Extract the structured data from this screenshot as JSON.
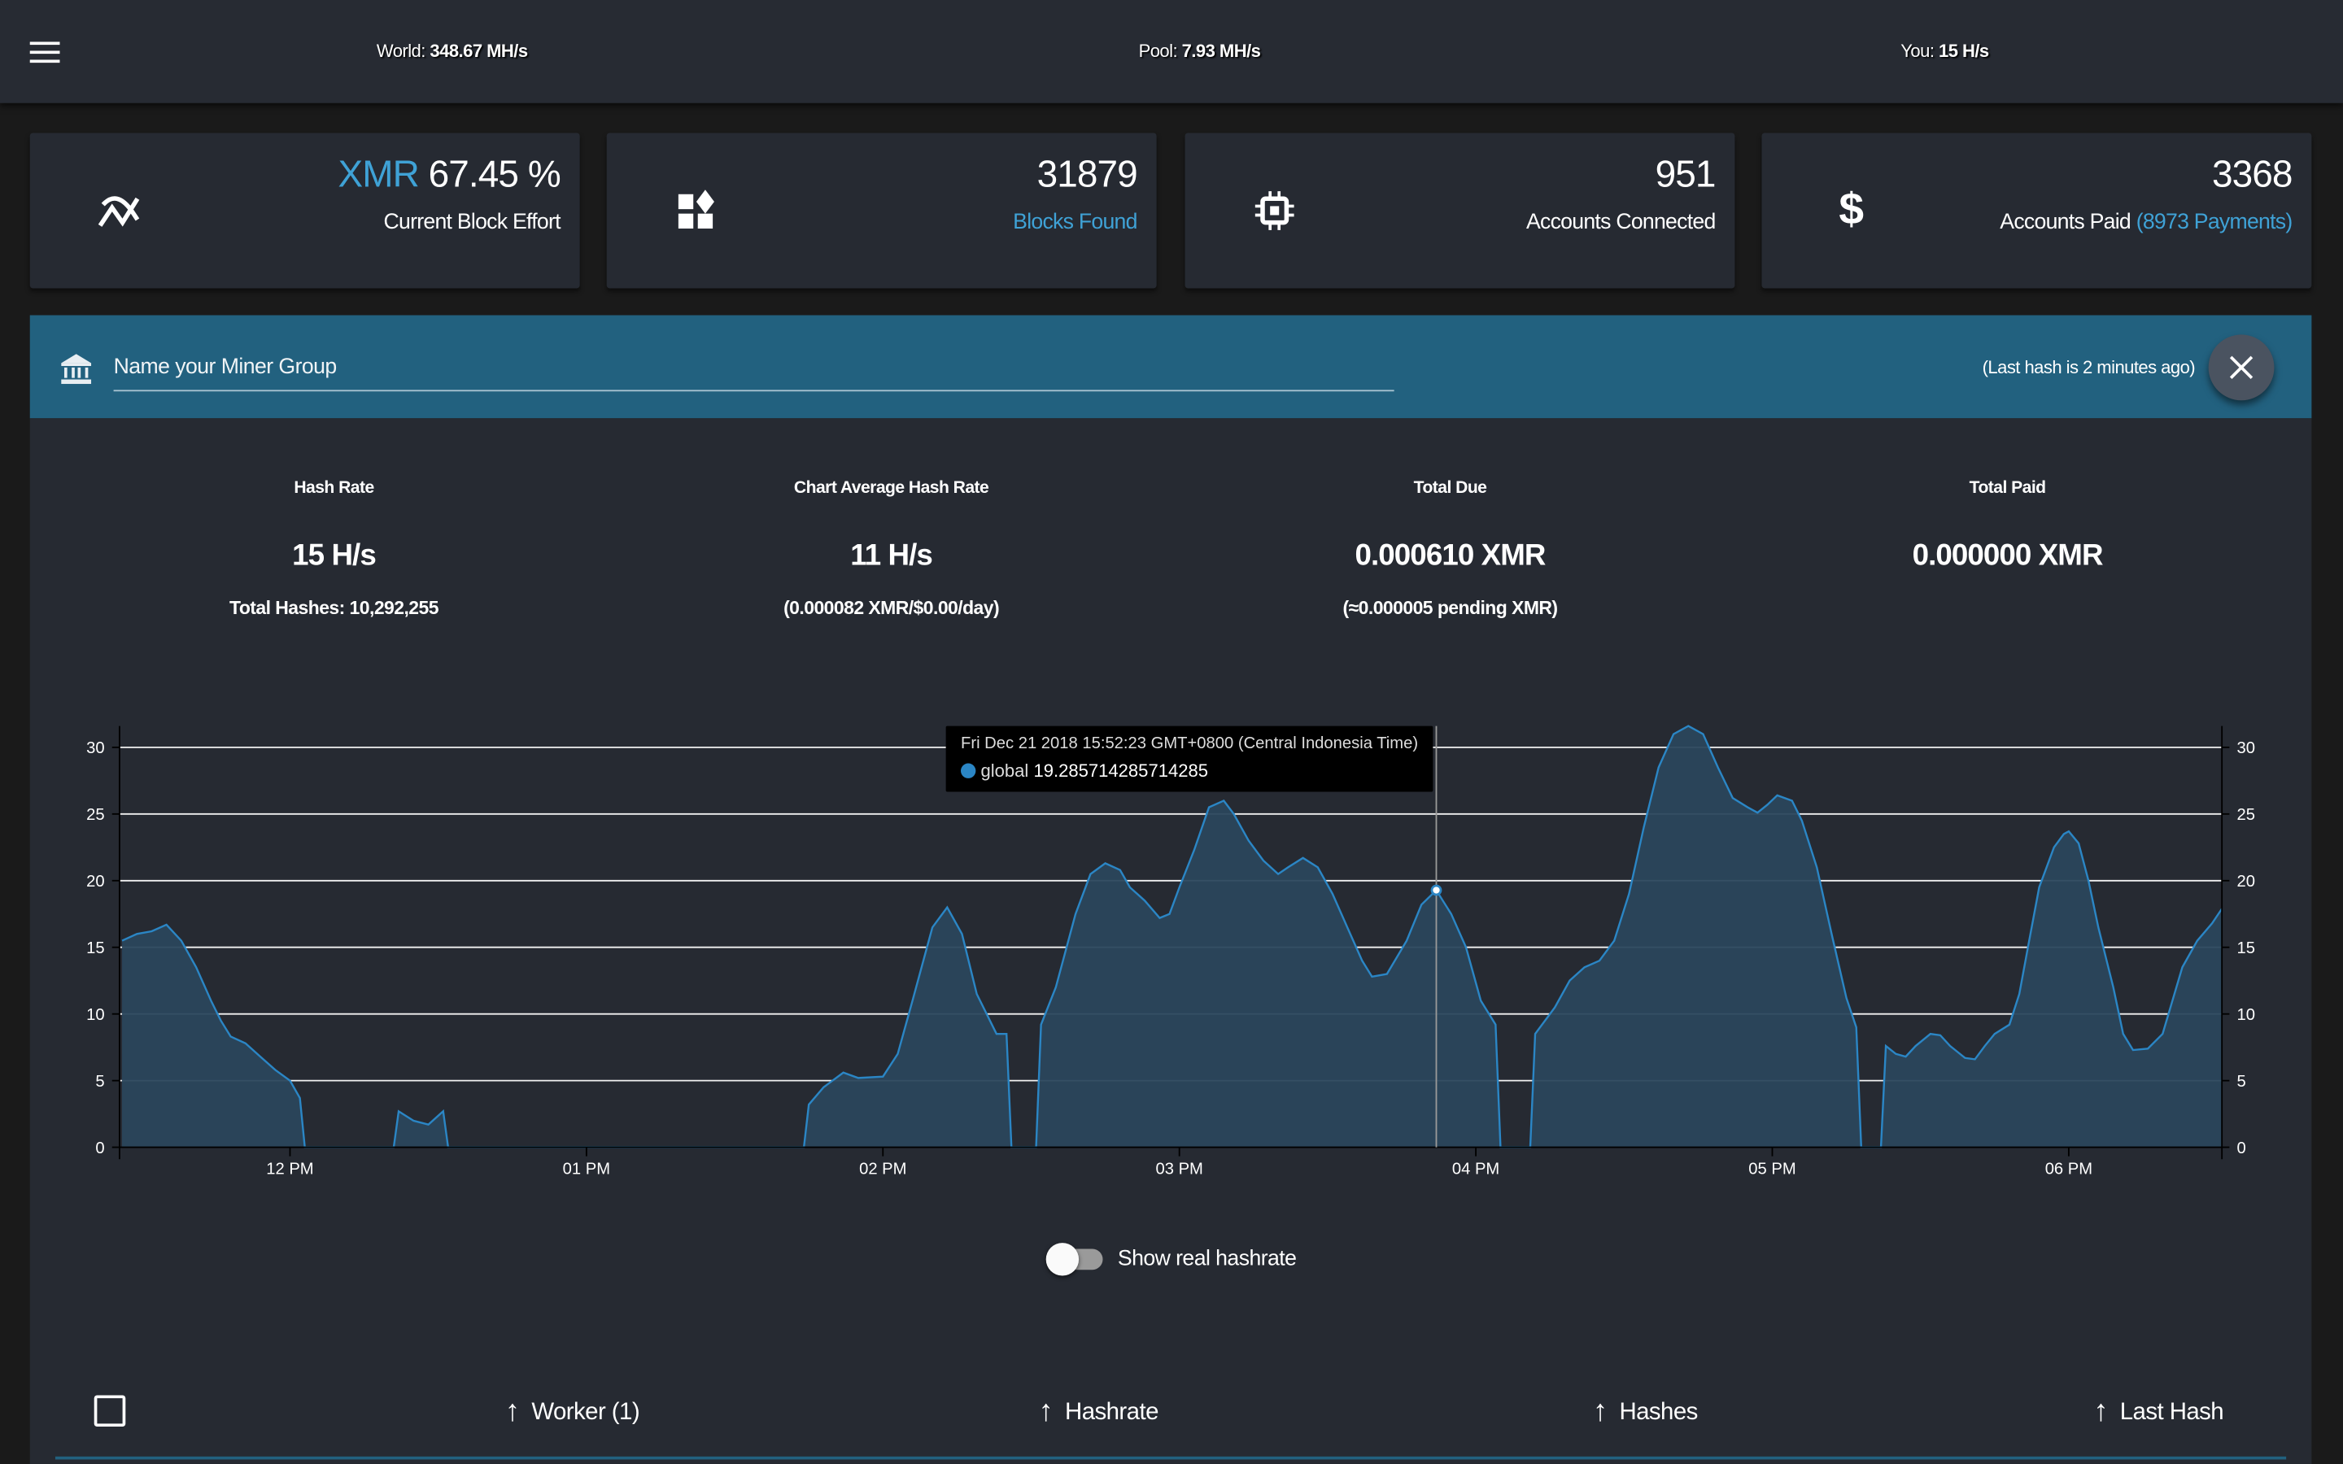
{
  "topbar": {
    "menu_icon": "hamburger-menu-icon",
    "world_label": "World:",
    "world_value": "348.67 MH/s",
    "pool_label": "Pool:",
    "pool_value": "7.93 MH/s",
    "you_label": "You:",
    "you_value": "15 H/s"
  },
  "cards": [
    {
      "icon": "effort-chart-icon",
      "prefix": "XMR",
      "value": "67.45 %",
      "label": "Current Block Effort"
    },
    {
      "icon": "widgets-icon",
      "value": "31879",
      "label": "Blocks Found"
    },
    {
      "icon": "cpu-chip-icon",
      "value": "951",
      "label": "Accounts Connected"
    },
    {
      "icon": "dollar-icon",
      "value": "3368",
      "label": "Accounts Paid",
      "extra": "(8973 Payments)"
    }
  ],
  "miner_group": {
    "icon": "bank-icon",
    "placeholder": "Name your Miner Group",
    "last_hash": "(Last hash is 2 minutes ago)",
    "close_icon": "close-icon"
  },
  "stats": [
    {
      "label": "Hash Rate",
      "value": "15 H/s",
      "sub": "Total Hashes: 10,292,255"
    },
    {
      "label": "Chart Average Hash Rate",
      "value": "11 H/s",
      "sub": "(0.000082 XMR/$0.00/day)"
    },
    {
      "label": "Total Due",
      "value": "0.000610 XMR",
      "sub": "(≈0.000005 pending XMR)"
    },
    {
      "label": "Total Paid",
      "value": "0.000000 XMR",
      "sub": ""
    }
  ],
  "chart_data": {
    "type": "area",
    "xlim": [
      "11:25",
      "18:31"
    ],
    "ylim": [
      0,
      31.6
    ],
    "grid": true,
    "y_ticks": [
      0,
      5,
      10,
      15,
      20,
      25,
      30
    ],
    "x_ticks": [
      {
        "time": "12:00",
        "label": "12 PM"
      },
      {
        "time": "13:00",
        "label": "01 PM"
      },
      {
        "time": "14:00",
        "label": "02 PM"
      },
      {
        "time": "15:00",
        "label": "03 PM"
      },
      {
        "time": "16:00",
        "label": "04 PM"
      },
      {
        "time": "17:00",
        "label": "05 PM"
      },
      {
        "time": "18:00",
        "label": "06 PM"
      }
    ],
    "colors": {
      "line": "#2b86c5",
      "fill": "#2a465c"
    },
    "series": [
      {
        "name": "global",
        "points": [
          [
            "11:26",
            15.5
          ],
          [
            "11:29",
            16
          ],
          [
            "11:32",
            16.2
          ],
          [
            "11:35",
            16.7
          ],
          [
            "11:38",
            15.5
          ],
          [
            "11:41",
            13.5
          ],
          [
            "11:44",
            11
          ],
          [
            "11:46",
            9.5
          ],
          [
            "11:48",
            8.3
          ],
          [
            "11:51",
            7.8
          ],
          [
            "11:54",
            6.8
          ],
          [
            "11:57",
            5.8
          ],
          [
            "12:00",
            5
          ],
          [
            "12:02",
            3.7
          ],
          [
            "12:03",
            0
          ],
          [
            "12:21",
            0
          ],
          [
            "12:22",
            2.7
          ],
          [
            "12:25",
            2.0
          ],
          [
            "12:28",
            1.7
          ],
          [
            "12:31",
            2.7
          ],
          [
            "12:32",
            0
          ],
          [
            "13:44",
            0
          ],
          [
            "13:45",
            3.2
          ],
          [
            "13:48",
            4.5
          ],
          [
            "13:52",
            5.6
          ],
          [
            "13:55",
            5.2
          ],
          [
            "14:00",
            5.3
          ],
          [
            "14:03",
            7
          ],
          [
            "14:06",
            11
          ],
          [
            "14:10",
            16.5
          ],
          [
            "14:13",
            18
          ],
          [
            "14:16",
            16
          ],
          [
            "14:19",
            11.5
          ],
          [
            "14:23",
            8.5
          ],
          [
            "14:25",
            8.5
          ],
          [
            "14:26",
            0
          ],
          [
            "14:31",
            0
          ],
          [
            "14:32",
            9.2
          ],
          [
            "14:35",
            12
          ],
          [
            "14:39",
            17.5
          ],
          [
            "14:42",
            20.5
          ],
          [
            "14:45",
            21.3
          ],
          [
            "14:48",
            20.8
          ],
          [
            "14:50",
            19.5
          ],
          [
            "14:53",
            18.5
          ],
          [
            "14:56",
            17.2
          ],
          [
            "14:58",
            17.5
          ],
          [
            "15:00",
            19.5
          ],
          [
            "15:03",
            22.3
          ],
          [
            "15:06",
            25.5
          ],
          [
            "15:09",
            26
          ],
          [
            "15:11",
            25
          ],
          [
            "15:14",
            23
          ],
          [
            "15:17",
            21.5
          ],
          [
            "15:20",
            20.5
          ],
          [
            "15:22",
            21
          ],
          [
            "15:25",
            21.7
          ],
          [
            "15:28",
            21
          ],
          [
            "15:31",
            19
          ],
          [
            "15:34",
            16.5
          ],
          [
            "15:37",
            14
          ],
          [
            "15:39",
            12.8
          ],
          [
            "15:42",
            13
          ],
          [
            "15:46",
            15.5
          ],
          [
            "15:49",
            18.2
          ],
          [
            "15:52",
            19.29
          ],
          [
            "15:55",
            17.5
          ],
          [
            "15:58",
            15
          ],
          [
            "16:01",
            11
          ],
          [
            "16:04",
            9.2
          ],
          [
            "16:05",
            0
          ],
          [
            "16:11",
            0
          ],
          [
            "16:12",
            8.5
          ],
          [
            "16:16",
            10.5
          ],
          [
            "16:19",
            12.5
          ],
          [
            "16:22",
            13.5
          ],
          [
            "16:25",
            14
          ],
          [
            "16:28",
            15.5
          ],
          [
            "16:31",
            19
          ],
          [
            "16:34",
            24
          ],
          [
            "16:37",
            28.5
          ],
          [
            "16:40",
            31
          ],
          [
            "16:43",
            31.6
          ],
          [
            "16:46",
            31
          ],
          [
            "16:49",
            28.5
          ],
          [
            "16:52",
            26.2
          ],
          [
            "16:55",
            25.5
          ],
          [
            "16:57",
            25.1
          ],
          [
            "16:59",
            25.7
          ],
          [
            "17:01",
            26.4
          ],
          [
            "17:04",
            26
          ],
          [
            "17:06",
            24.5
          ],
          [
            "17:09",
            21
          ],
          [
            "17:12",
            16
          ],
          [
            "17:15",
            11.2
          ],
          [
            "17:17",
            9
          ],
          [
            "17:18",
            0
          ],
          [
            "17:22",
            0
          ],
          [
            "17:23",
            7.6
          ],
          [
            "17:25",
            7
          ],
          [
            "17:27",
            6.8
          ],
          [
            "17:29",
            7.6
          ],
          [
            "17:32",
            8.5
          ],
          [
            "17:34",
            8.4
          ],
          [
            "17:36",
            7.6
          ],
          [
            "17:39",
            6.7
          ],
          [
            "17:41",
            6.6
          ],
          [
            "17:43",
            7.6
          ],
          [
            "17:45",
            8.5
          ],
          [
            "17:48",
            9.2
          ],
          [
            "17:50",
            11.5
          ],
          [
            "17:52",
            15.5
          ],
          [
            "17:54",
            19.5
          ],
          [
            "17:57",
            22.5
          ],
          [
            "17:59",
            23.5
          ],
          [
            "18:00",
            23.7
          ],
          [
            "18:02",
            22.8
          ],
          [
            "18:04",
            20
          ],
          [
            "18:06",
            16.5
          ],
          [
            "18:09",
            12
          ],
          [
            "18:11",
            8.5
          ],
          [
            "18:13",
            7.3
          ],
          [
            "18:16",
            7.4
          ],
          [
            "18:19",
            8.5
          ],
          [
            "18:21",
            11
          ],
          [
            "18:23",
            13.5
          ],
          [
            "18:26",
            15.5
          ],
          [
            "18:29",
            16.8
          ],
          [
            "18:31",
            17.9
          ]
        ]
      }
    ],
    "tooltip": {
      "time": "15:52",
      "title": "Fri Dec 21 2018 15:52:23 GMT+0800 (Central Indonesia Time)",
      "series": "global",
      "value": "19.285714285714285"
    }
  },
  "toggle": {
    "label": "Show real hashrate",
    "on": false
  },
  "table": {
    "columns": [
      {
        "label": "Worker (1)",
        "sort_icon": "arrow-up-icon"
      },
      {
        "label": "Hashrate",
        "sort_icon": "arrow-up-icon"
      },
      {
        "label": "Hashes",
        "sort_icon": "arrow-up-icon"
      },
      {
        "label": "Last Hash",
        "sort_icon": "arrow-up-icon"
      }
    ]
  }
}
